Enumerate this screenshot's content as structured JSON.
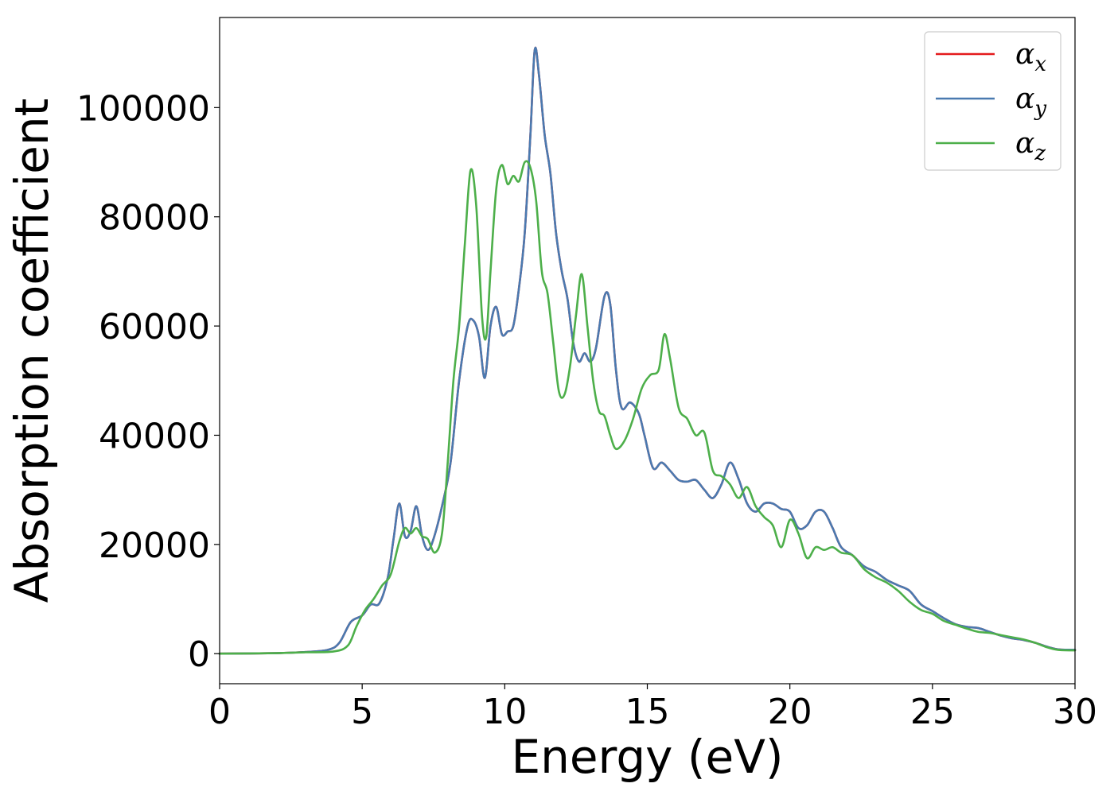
{
  "chart_data": {
    "type": "line",
    "title": "",
    "xlabel": "Energy (eV)",
    "ylabel": "Absorption coefficient",
    "xlim": [
      0,
      30
    ],
    "ylim": [
      -5500,
      116500
    ],
    "xticks": [
      0,
      5,
      10,
      15,
      20,
      25,
      30
    ],
    "xtick_labels": [
      "0",
      "5",
      "10",
      "15",
      "20",
      "25",
      "30"
    ],
    "yticks": [
      0,
      20000,
      40000,
      60000,
      80000,
      100000
    ],
    "ytick_labels": [
      "0",
      "20000",
      "40000",
      "60000",
      "80000",
      "100000"
    ],
    "grid": false,
    "legend_position": "top-right",
    "series": [
      {
        "name": "α",
        "subscript": "x",
        "color": "#e41a1c",
        "points": [
          [
            0,
            0
          ],
          [
            2,
            100
          ],
          [
            3,
            300
          ],
          [
            3.8,
            700
          ],
          [
            4.2,
            2000
          ],
          [
            4.6,
            5800
          ],
          [
            5.0,
            7000
          ],
          [
            5.3,
            9000
          ],
          [
            5.6,
            9200
          ],
          [
            5.9,
            14000
          ],
          [
            6.1,
            21000
          ],
          [
            6.3,
            27500
          ],
          [
            6.5,
            21500
          ],
          [
            6.7,
            22500
          ],
          [
            6.9,
            27000
          ],
          [
            7.1,
            21500
          ],
          [
            7.3,
            19000
          ],
          [
            7.5,
            21000
          ],
          [
            7.8,
            27000
          ],
          [
            8.1,
            35000
          ],
          [
            8.4,
            50000
          ],
          [
            8.7,
            60000
          ],
          [
            8.9,
            61000
          ],
          [
            9.1,
            58000
          ],
          [
            9.3,
            50500
          ],
          [
            9.5,
            60000
          ],
          [
            9.7,
            63500
          ],
          [
            9.9,
            58500
          ],
          [
            10.1,
            59000
          ],
          [
            10.3,
            60000
          ],
          [
            10.5,
            67000
          ],
          [
            10.7,
            77000
          ],
          [
            10.9,
            95000
          ],
          [
            11.05,
            110500
          ],
          [
            11.2,
            106000
          ],
          [
            11.4,
            95000
          ],
          [
            11.6,
            88000
          ],
          [
            11.8,
            77000
          ],
          [
            12.0,
            70000
          ],
          [
            12.2,
            65000
          ],
          [
            12.4,
            57000
          ],
          [
            12.6,
            53500
          ],
          [
            12.8,
            55000
          ],
          [
            13.0,
            53500
          ],
          [
            13.2,
            56000
          ],
          [
            13.5,
            65500
          ],
          [
            13.7,
            64000
          ],
          [
            13.9,
            52000
          ],
          [
            14.1,
            45000
          ],
          [
            14.4,
            46000
          ],
          [
            14.7,
            44000
          ],
          [
            14.9,
            40000
          ],
          [
            15.2,
            34000
          ],
          [
            15.5,
            35000
          ],
          [
            15.8,
            33500
          ],
          [
            16.1,
            31800
          ],
          [
            16.4,
            31500
          ],
          [
            16.7,
            31800
          ],
          [
            17.0,
            30000
          ],
          [
            17.3,
            28500
          ],
          [
            17.6,
            31000
          ],
          [
            17.9,
            35000
          ],
          [
            18.2,
            32000
          ],
          [
            18.5,
            27500
          ],
          [
            18.8,
            26000
          ],
          [
            19.1,
            27500
          ],
          [
            19.4,
            27500
          ],
          [
            19.7,
            26500
          ],
          [
            20.0,
            26000
          ],
          [
            20.3,
            23000
          ],
          [
            20.6,
            23500
          ],
          [
            20.9,
            26000
          ],
          [
            21.2,
            26000
          ],
          [
            21.5,
            23000
          ],
          [
            21.8,
            19500
          ],
          [
            22.2,
            18000
          ],
          [
            22.6,
            16000
          ],
          [
            23.0,
            15000
          ],
          [
            23.4,
            13500
          ],
          [
            23.8,
            12500
          ],
          [
            24.2,
            11500
          ],
          [
            24.6,
            9000
          ],
          [
            25.0,
            7800
          ],
          [
            25.4,
            6500
          ],
          [
            25.8,
            5400
          ],
          [
            26.2,
            4900
          ],
          [
            26.6,
            4700
          ],
          [
            27.0,
            4000
          ],
          [
            27.4,
            3300
          ],
          [
            27.8,
            2800
          ],
          [
            28.2,
            2500
          ],
          [
            28.6,
            2000
          ],
          [
            29.0,
            1300
          ],
          [
            29.4,
            800
          ],
          [
            30.0,
            700
          ]
        ]
      },
      {
        "name": "α",
        "subscript": "y",
        "color": "#4a7ab0",
        "points": [
          [
            0,
            0
          ],
          [
            2,
            100
          ],
          [
            3,
            300
          ],
          [
            3.8,
            700
          ],
          [
            4.2,
            2000
          ],
          [
            4.6,
            5800
          ],
          [
            5.0,
            7000
          ],
          [
            5.3,
            9000
          ],
          [
            5.6,
            9200
          ],
          [
            5.9,
            14000
          ],
          [
            6.1,
            21000
          ],
          [
            6.3,
            27500
          ],
          [
            6.5,
            21500
          ],
          [
            6.7,
            22500
          ],
          [
            6.9,
            27000
          ],
          [
            7.1,
            21500
          ],
          [
            7.3,
            19000
          ],
          [
            7.5,
            21000
          ],
          [
            7.8,
            27000
          ],
          [
            8.1,
            35000
          ],
          [
            8.4,
            50000
          ],
          [
            8.7,
            60000
          ],
          [
            8.9,
            61000
          ],
          [
            9.1,
            58000
          ],
          [
            9.3,
            50500
          ],
          [
            9.5,
            60000
          ],
          [
            9.7,
            63500
          ],
          [
            9.9,
            58500
          ],
          [
            10.1,
            59000
          ],
          [
            10.3,
            60000
          ],
          [
            10.5,
            67000
          ],
          [
            10.7,
            77000
          ],
          [
            10.9,
            95000
          ],
          [
            11.05,
            110500
          ],
          [
            11.2,
            106000
          ],
          [
            11.4,
            95000
          ],
          [
            11.6,
            88000
          ],
          [
            11.8,
            77000
          ],
          [
            12.0,
            70000
          ],
          [
            12.2,
            65000
          ],
          [
            12.4,
            57000
          ],
          [
            12.6,
            53500
          ],
          [
            12.8,
            55000
          ],
          [
            13.0,
            53500
          ],
          [
            13.2,
            56000
          ],
          [
            13.5,
            65500
          ],
          [
            13.7,
            64000
          ],
          [
            13.9,
            52000
          ],
          [
            14.1,
            45000
          ],
          [
            14.4,
            46000
          ],
          [
            14.7,
            44000
          ],
          [
            14.9,
            40000
          ],
          [
            15.2,
            34000
          ],
          [
            15.5,
            35000
          ],
          [
            15.8,
            33500
          ],
          [
            16.1,
            31800
          ],
          [
            16.4,
            31500
          ],
          [
            16.7,
            31800
          ],
          [
            17.0,
            30000
          ],
          [
            17.3,
            28500
          ],
          [
            17.6,
            31000
          ],
          [
            17.9,
            35000
          ],
          [
            18.2,
            32000
          ],
          [
            18.5,
            27500
          ],
          [
            18.8,
            26000
          ],
          [
            19.1,
            27500
          ],
          [
            19.4,
            27500
          ],
          [
            19.7,
            26500
          ],
          [
            20.0,
            26000
          ],
          [
            20.3,
            23000
          ],
          [
            20.6,
            23500
          ],
          [
            20.9,
            26000
          ],
          [
            21.2,
            26000
          ],
          [
            21.5,
            23000
          ],
          [
            21.8,
            19500
          ],
          [
            22.2,
            18000
          ],
          [
            22.6,
            16000
          ],
          [
            23.0,
            15000
          ],
          [
            23.4,
            13500
          ],
          [
            23.8,
            12500
          ],
          [
            24.2,
            11500
          ],
          [
            24.6,
            9000
          ],
          [
            25.0,
            7800
          ],
          [
            25.4,
            6500
          ],
          [
            25.8,
            5400
          ],
          [
            26.2,
            4900
          ],
          [
            26.6,
            4700
          ],
          [
            27.0,
            4000
          ],
          [
            27.4,
            3300
          ],
          [
            27.8,
            2800
          ],
          [
            28.2,
            2500
          ],
          [
            28.6,
            2000
          ],
          [
            29.0,
            1300
          ],
          [
            29.4,
            800
          ],
          [
            30.0,
            700
          ]
        ]
      },
      {
        "name": "α",
        "subscript": "z",
        "color": "#4daf4a",
        "points": [
          [
            0,
            0
          ],
          [
            2,
            100
          ],
          [
            3,
            250
          ],
          [
            4,
            400
          ],
          [
            4.5,
            1500
          ],
          [
            4.8,
            5000
          ],
          [
            5.1,
            8000
          ],
          [
            5.4,
            10000
          ],
          [
            5.7,
            12500
          ],
          [
            6.0,
            14500
          ],
          [
            6.3,
            20500
          ],
          [
            6.5,
            23000
          ],
          [
            6.7,
            22000
          ],
          [
            6.9,
            23000
          ],
          [
            7.1,
            21500
          ],
          [
            7.3,
            21000
          ],
          [
            7.55,
            18500
          ],
          [
            7.8,
            22000
          ],
          [
            8.0,
            35000
          ],
          [
            8.2,
            50000
          ],
          [
            8.4,
            60000
          ],
          [
            8.6,
            75000
          ],
          [
            8.8,
            88500
          ],
          [
            9.0,
            82000
          ],
          [
            9.2,
            62000
          ],
          [
            9.35,
            58000
          ],
          [
            9.5,
            70000
          ],
          [
            9.7,
            85000
          ],
          [
            9.9,
            89500
          ],
          [
            10.1,
            86000
          ],
          [
            10.3,
            87500
          ],
          [
            10.5,
            86500
          ],
          [
            10.7,
            90000
          ],
          [
            10.9,
            89000
          ],
          [
            11.1,
            83000
          ],
          [
            11.3,
            70000
          ],
          [
            11.5,
            66000
          ],
          [
            11.7,
            57000
          ],
          [
            11.9,
            48000
          ],
          [
            12.1,
            47500
          ],
          [
            12.3,
            53000
          ],
          [
            12.5,
            62000
          ],
          [
            12.7,
            69500
          ],
          [
            12.9,
            60000
          ],
          [
            13.1,
            50000
          ],
          [
            13.3,
            44500
          ],
          [
            13.5,
            43500
          ],
          [
            13.7,
            40000
          ],
          [
            13.9,
            37500
          ],
          [
            14.2,
            39000
          ],
          [
            14.5,
            43000
          ],
          [
            14.8,
            48500
          ],
          [
            15.1,
            51000
          ],
          [
            15.4,
            52000
          ],
          [
            15.6,
            58500
          ],
          [
            15.8,
            54000
          ],
          [
            16.1,
            45000
          ],
          [
            16.4,
            43000
          ],
          [
            16.7,
            40000
          ],
          [
            17.0,
            40500
          ],
          [
            17.3,
            33500
          ],
          [
            17.6,
            32500
          ],
          [
            17.9,
            31000
          ],
          [
            18.2,
            28500
          ],
          [
            18.5,
            30500
          ],
          [
            18.8,
            27000
          ],
          [
            19.1,
            25000
          ],
          [
            19.4,
            23500
          ],
          [
            19.7,
            19500
          ],
          [
            20.0,
            24500
          ],
          [
            20.3,
            22000
          ],
          [
            20.6,
            17500
          ],
          [
            20.9,
            19500
          ],
          [
            21.2,
            19000
          ],
          [
            21.5,
            19500
          ],
          [
            21.8,
            18500
          ],
          [
            22.2,
            18000
          ],
          [
            22.6,
            15500
          ],
          [
            23.0,
            14000
          ],
          [
            23.4,
            13000
          ],
          [
            23.8,
            11500
          ],
          [
            24.2,
            9500
          ],
          [
            24.6,
            8000
          ],
          [
            25.0,
            7300
          ],
          [
            25.4,
            6000
          ],
          [
            25.8,
            5300
          ],
          [
            26.2,
            4600
          ],
          [
            26.6,
            4000
          ],
          [
            27.0,
            3800
          ],
          [
            27.4,
            3400
          ],
          [
            27.8,
            3000
          ],
          [
            28.2,
            2600
          ],
          [
            28.6,
            2000
          ],
          [
            29.0,
            1200
          ],
          [
            29.4,
            700
          ],
          [
            30.0,
            600
          ]
        ]
      }
    ]
  }
}
